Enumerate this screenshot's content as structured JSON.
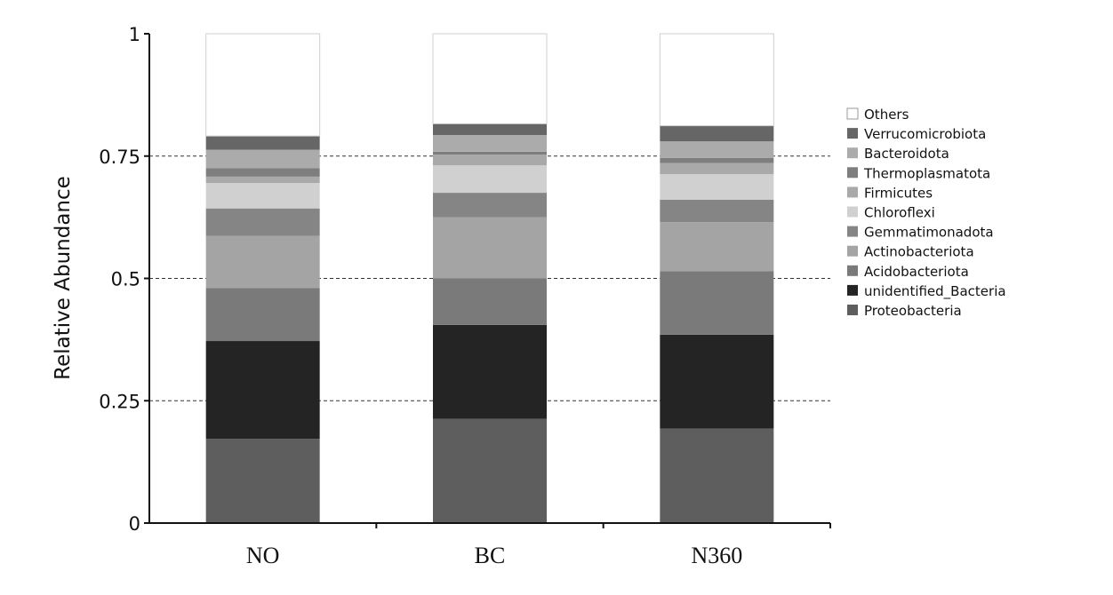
{
  "chart_data": {
    "type": "bar",
    "stacked": true,
    "normalized": true,
    "title": "",
    "xlabel": "",
    "ylabel": "Relative Abundance",
    "ylim": [
      0,
      1
    ],
    "yticks": [
      0,
      0.25,
      0.5,
      0.75,
      1
    ],
    "ytick_labels": [
      "0",
      "0.25",
      "0.5",
      "0.75",
      "1"
    ],
    "grid": "horizontal dashed lines at 0.25, 0.5, 0.75",
    "legend_position": "right",
    "categories": [
      "NO",
      "BC",
      "N360"
    ],
    "series": [
      {
        "name": "Proteobacteria",
        "color": "#5e5e5e",
        "values": [
          0.172,
          0.213,
          0.193
        ]
      },
      {
        "name": "unidentified_Bacteria",
        "color": "#242424",
        "values": [
          0.2,
          0.192,
          0.192
        ]
      },
      {
        "name": "Acidobacteriota",
        "color": "#7a7a7a",
        "values": [
          0.108,
          0.095,
          0.13
        ]
      },
      {
        "name": "Actinobacteriota",
        "color": "#a4a4a4",
        "values": [
          0.107,
          0.125,
          0.1
        ]
      },
      {
        "name": "Gemmatimonadota",
        "color": "#858585",
        "values": [
          0.056,
          0.05,
          0.046
        ]
      },
      {
        "name": "Chloroflexi",
        "color": "#d0d0d0",
        "values": [
          0.052,
          0.056,
          0.052
        ]
      },
      {
        "name": "Firmicutes",
        "color": "#a9a9a9",
        "values": [
          0.013,
          0.022,
          0.023
        ]
      },
      {
        "name": "Thermoplasmatota",
        "color": "#7e7e7e",
        "values": [
          0.017,
          0.006,
          0.01
        ]
      },
      {
        "name": "Bacteroidota",
        "color": "#ababab",
        "values": [
          0.038,
          0.034,
          0.034
        ]
      },
      {
        "name": "Verrucomicrobiota",
        "color": "#666666",
        "values": [
          0.028,
          0.023,
          0.032
        ]
      },
      {
        "name": "Others",
        "color": "#ffffff",
        "values": [
          0.209,
          0.184,
          0.188
        ]
      }
    ],
    "legend_order": [
      "Others",
      "Verrucomicrobiota",
      "Bacteroidota",
      "Thermoplasmatota",
      "Firmicutes",
      "Chloroflexi",
      "Gemmatimonadota",
      "Actinobacteriota",
      "Acidobacteriota",
      "unidentified_Bacteria",
      "Proteobacteria"
    ]
  }
}
